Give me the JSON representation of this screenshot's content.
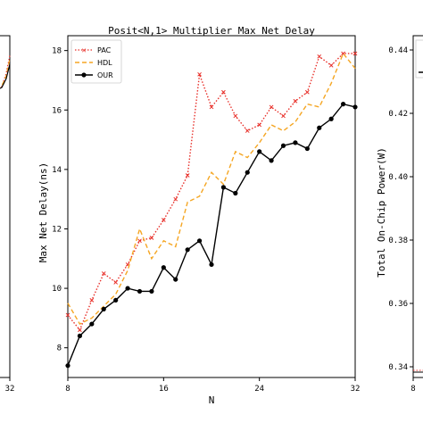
{
  "chart_data": [
    {
      "type": "line",
      "title": "Posit<N,1> Multiplier Max Net Delay",
      "xlabel": "N",
      "ylabel": "Max Net Delay(ns)",
      "xlim": [
        8,
        32
      ],
      "ylim": [
        7,
        18.5
      ],
      "xticks": [
        "8",
        "16",
        "24",
        "32"
      ],
      "yticks": [
        "8",
        "10",
        "12",
        "14",
        "16",
        "18"
      ],
      "legend_position": "top-left",
      "grid": false,
      "x": [
        8,
        9,
        10,
        11,
        12,
        13,
        14,
        15,
        16,
        17,
        18,
        19,
        20,
        21,
        22,
        23,
        24,
        25,
        26,
        27,
        28,
        29,
        30,
        31,
        32
      ],
      "series": [
        {
          "name": "PAC",
          "color": "#e8302a",
          "style": "dotted",
          "marker": "x",
          "values": [
            9.1,
            8.6,
            9.6,
            10.5,
            10.2,
            10.8,
            11.6,
            11.7,
            12.3,
            13.0,
            13.8,
            17.2,
            16.1,
            16.6,
            15.8,
            15.3,
            15.5,
            16.1,
            15.8,
            16.3,
            16.6,
            17.8,
            17.5,
            17.9,
            17.9
          ]
        },
        {
          "name": "HDL",
          "color": "#f5a623",
          "style": "dashed",
          "marker": "none",
          "values": [
            9.5,
            8.8,
            9.0,
            9.4,
            9.8,
            10.6,
            12.0,
            11.0,
            11.6,
            11.4,
            12.9,
            13.1,
            13.9,
            13.5,
            14.6,
            14.4,
            14.9,
            15.5,
            15.3,
            15.6,
            16.2,
            16.1,
            16.9,
            17.9,
            17.4
          ]
        },
        {
          "name": "OUR",
          "color": "#000000",
          "style": "solid",
          "marker": "o",
          "values": [
            7.4,
            8.4,
            8.8,
            9.3,
            9.6,
            10.0,
            9.9,
            9.9,
            10.7,
            10.3,
            11.3,
            11.6,
            10.8,
            13.4,
            13.2,
            13.9,
            14.6,
            14.3,
            14.8,
            14.9,
            14.7,
            15.4,
            15.7,
            16.2,
            16.1
          ]
        }
      ]
    },
    {
      "type": "line",
      "partial": "left panel (cropped)",
      "xticks": [
        "32"
      ],
      "series": []
    },
    {
      "type": "line",
      "partial": "right panel (cropped)",
      "ylabel": "Total On-Chip Power(W)",
      "xticks": [
        "8"
      ],
      "yticks": [
        "0.34",
        "0.36",
        "0.38",
        "0.40",
        "0.42",
        "0.44"
      ],
      "series": []
    }
  ]
}
